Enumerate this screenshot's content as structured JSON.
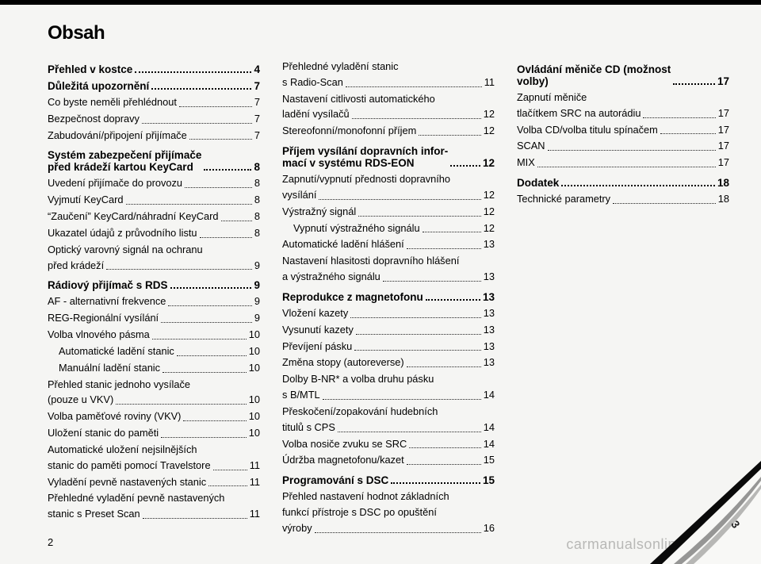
{
  "title": "Obsah",
  "pageNumber": "2",
  "watermark": "carmanualsonline.info",
  "tabDigit": "3",
  "col1": {
    "s1": {
      "head": "Přehled v kostce",
      "pg": "4"
    },
    "s2": {
      "head": "Důležitá upozornění",
      "pg": "7",
      "e": [
        {
          "t": "Co byste neměli přehlédnout",
          "p": "7"
        },
        {
          "t": "Bezpečnost dopravy",
          "p": "7"
        },
        {
          "t": "Zabudování/připojení přijímače",
          "p": "7"
        }
      ]
    },
    "s3": {
      "headLines": [
        "Systém zabezpečení přijímače",
        "před krádeží kartou KeyCard"
      ],
      "pg": "8",
      "e": [
        {
          "t": "Uvedení přijímače do provozu",
          "p": "8"
        },
        {
          "t": "Vyjmutí KeyCard",
          "p": "8"
        },
        {
          "t": "“Zaučení” KeyCard/náhradní KeyCard",
          "p": "8"
        },
        {
          "t": "Ukazatel údajů z průvodního listu",
          "p": "8"
        },
        {
          "cont": "Optický varovný signál na ochranu"
        },
        {
          "t": "před krádeží",
          "p": "9"
        }
      ]
    },
    "s4": {
      "head": "Rádiový přijímač s RDS",
      "pg": "9",
      "e": [
        {
          "t": "AF - alternativní frekvence",
          "p": "9"
        },
        {
          "t": "REG-Regionální vysílání",
          "p": "9"
        },
        {
          "t": "Volba vlnového pásma",
          "p": "10"
        },
        {
          "t": "Automatické ladění stanic",
          "p": "10",
          "indent": true
        },
        {
          "t": "Manuální ladění stanic",
          "p": "10",
          "indent": true
        },
        {
          "cont": "Přehled stanic jednoho vysílače"
        },
        {
          "t": "(pouze u VKV)",
          "p": "10"
        },
        {
          "t": "Volba paměťové roviny (VKV)",
          "p": "10"
        },
        {
          "t": "Uložení stanic do paměti",
          "p": "10"
        },
        {
          "cont": "Automatické uložení nejsilnějších"
        },
        {
          "t": "stanic do paměti pomocí Travelstore",
          "p": "11"
        },
        {
          "t": "Vyladění pevně nastavených stanic",
          "p": "11"
        },
        {
          "cont": "Přehledné vyladění pevně nastavených"
        },
        {
          "t": "stanic s Preset Scan",
          "p": "11"
        }
      ]
    }
  },
  "col2": {
    "pre": [
      {
        "cont": "Přehledné vyladění stanic"
      },
      {
        "t": "s Radio-Scan",
        "p": "11"
      },
      {
        "cont": "Nastavení citlivosti automatického"
      },
      {
        "t": "ladění vysílačů",
        "p": "12"
      },
      {
        "t": "Stereofonní/monofonní příjem",
        "p": "12"
      }
    ],
    "s1": {
      "headLines": [
        "Příjem vysílání dopravních infor-",
        "mací v systému RDS-EON"
      ],
      "pg": "12",
      "e": [
        {
          "cont": "Zapnutí/vypnutí přednosti dopravního"
        },
        {
          "t": "vysílání",
          "p": "12"
        },
        {
          "t": "Výstražný signál",
          "p": "12"
        },
        {
          "t": "Vypnutí výstražného signálu",
          "p": "12",
          "indent": true
        },
        {
          "t": "Automatické ladění hlášení",
          "p": "13"
        },
        {
          "cont": "Nastavení hlasitosti dopravního hlášení"
        },
        {
          "t": "a výstražného signálu",
          "p": "13"
        }
      ]
    },
    "s2": {
      "head": "Reprodukce z magnetofonu",
      "pg": "13",
      "e": [
        {
          "t": "Vložení kazety",
          "p": "13"
        },
        {
          "t": "Vysunutí kazety",
          "p": "13"
        },
        {
          "t": "Převíjení pásku",
          "p": "13"
        },
        {
          "t": "Změna stopy (autoreverse)",
          "p": "13"
        },
        {
          "cont": "Dolby B-NR* a volba druhu pásku"
        },
        {
          "t": "s B/MTL",
          "p": "14"
        },
        {
          "cont": "Přeskočení/zopakování hudebních"
        },
        {
          "t": "titulů s CPS",
          "p": "14"
        },
        {
          "t": "Volba nosiče zvuku se SRC",
          "p": "14"
        },
        {
          "t": "Údržba magnetofonu/kazet",
          "p": "15"
        }
      ]
    },
    "s3": {
      "head": "Programování s DSC",
      "pg": "15",
      "e": [
        {
          "cont": "Přehled nastavení hodnot základních"
        },
        {
          "cont": "funkcí přístroje s DSC po opuštění"
        },
        {
          "t": "výroby",
          "p": "16"
        }
      ]
    }
  },
  "col3": {
    "s1": {
      "headLines": [
        "Ovládání měniče CD (možnost",
        "volby)"
      ],
      "pg": "17",
      "e": [
        {
          "cont": "Zapnutí měniče"
        },
        {
          "t": "tlačítkem SRC na autorádiu",
          "p": "17"
        },
        {
          "t": "Volba CD/volba titulu spínačem",
          "p": "17"
        },
        {
          "t": "SCAN",
          "p": "17"
        },
        {
          "t": "MIX",
          "p": "17"
        }
      ]
    },
    "s2": {
      "head": "Dodatek",
      "pg": "18",
      "e": [
        {
          "t": "Technické parametry",
          "p": "18"
        }
      ]
    }
  }
}
